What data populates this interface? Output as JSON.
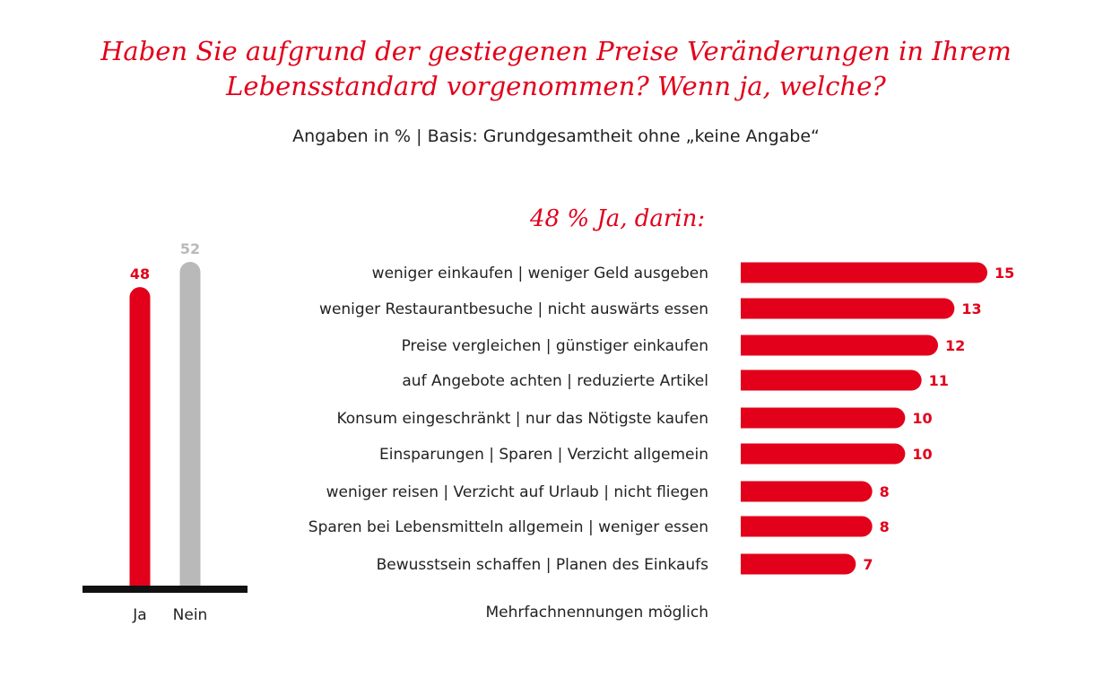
{
  "title": {
    "line1": "Haben Sie aufgrund der gestiegenen Preise Veränderungen in Ihrem",
    "line2": "Lebensstandard vorgenommen? Wenn ja, welche?"
  },
  "subtitle": "Angaben in % | Basis: Grundgesamtheit ohne „keine Angabe“",
  "subheading": "48 % Ja, darin:",
  "footnote": "Mehrfachnennungen möglich",
  "colors": {
    "accent": "#e2001a",
    "neutral": "#b9b9b9",
    "baseline": "#111111",
    "text": "#222222"
  },
  "chart_data": [
    {
      "type": "bar",
      "orientation": "vertical",
      "categories": [
        "Ja",
        "Nein"
      ],
      "values": [
        48,
        52
      ],
      "colors": [
        "#e2001a",
        "#b9b9b9"
      ],
      "ylim": [
        0,
        52
      ]
    },
    {
      "type": "bar",
      "orientation": "horizontal",
      "categories": [
        "weniger einkaufen | weniger Geld ausgeben",
        "weniger Restaurantbesuche | nicht auswärts essen",
        "Preise vergleichen | günstiger einkaufen",
        "auf Angebote achten | reduzierte Artikel",
        "Konsum eingeschränkt | nur das Nötigste kaufen",
        "Einsparungen | Sparen | Verzicht allgemein",
        "weniger reisen | Verzicht auf Urlaub | nicht fliegen",
        "Sparen bei Lebensmitteln allgemein | weniger essen",
        "Bewusstsein schaffen | Planen des Einkaufs"
      ],
      "values": [
        15,
        13,
        12,
        11,
        10,
        10,
        8,
        8,
        7
      ],
      "color": "#e2001a",
      "xlim": [
        0,
        15
      ]
    }
  ]
}
